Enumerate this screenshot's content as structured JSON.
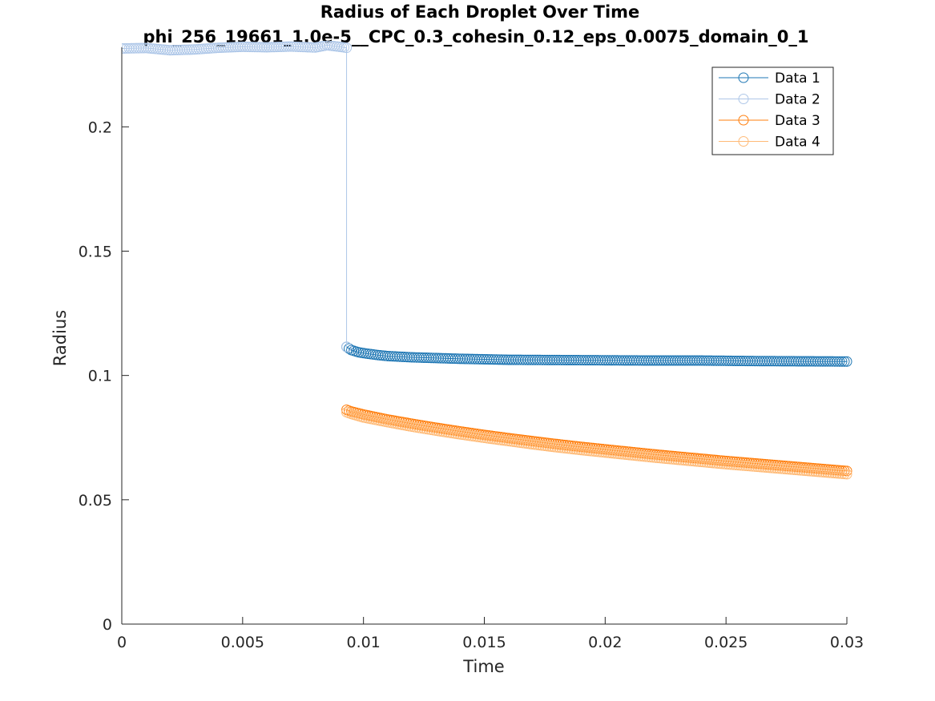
{
  "chart_data": {
    "type": "line",
    "title": "Radius of Each Droplet Over Time",
    "subtitle": "phi_256_19661_1.0e-5__CPC_0.3_cohesin_0.12_eps_0.0075_domain_0_1",
    "xlabel": "Time",
    "ylabel": "Radius",
    "xlim": [
      0,
      0.03
    ],
    "ylim": [
      0,
      0.232
    ],
    "xticks": [
      0,
      0.005,
      0.01,
      0.015,
      0.02,
      0.025,
      0.03
    ],
    "xtick_labels": [
      "0",
      "0.005",
      "0.01",
      "0.015",
      "0.02",
      "0.025",
      "0.03"
    ],
    "yticks": [
      0,
      0.05,
      0.1,
      0.15,
      0.2
    ],
    "ytick_labels": [
      "0",
      "0.05",
      "0.1",
      "0.15",
      "0.2"
    ],
    "grid": false,
    "legend_position": "top-right",
    "marker": "circle-open",
    "series": [
      {
        "name": "Data 1",
        "color": "#1f77b4",
        "x": [
          0.0093,
          0.0095,
          0.0098,
          0.0102,
          0.0106,
          0.011,
          0.012,
          0.013,
          0.014,
          0.016,
          0.018,
          0.02,
          0.022,
          0.024,
          0.026,
          0.028,
          0.03
        ],
        "y": [
          0.1115,
          0.1102,
          0.1093,
          0.1087,
          0.1082,
          0.1078,
          0.1073,
          0.107,
          0.1067,
          0.1063,
          0.1062,
          0.1061,
          0.106,
          0.106,
          0.1058,
          0.1057,
          0.1056
        ]
      },
      {
        "name": "Data 2",
        "color": "#aec7e8",
        "x": [
          0,
          0.001,
          0.002,
          0.003,
          0.004,
          0.005,
          0.006,
          0.007,
          0.008,
          0.0085,
          0.009,
          0.0093,
          0.0093
        ],
        "y": [
          0.2315,
          0.2317,
          0.2308,
          0.2311,
          0.2318,
          0.2322,
          0.232,
          0.2323,
          0.2319,
          0.2328,
          0.2322,
          0.2318,
          0.1115
        ]
      },
      {
        "name": "Data 3",
        "color": "#ff7f0e",
        "x": [
          0.0093,
          0.0095,
          0.01,
          0.011,
          0.012,
          0.013,
          0.014,
          0.015,
          0.016,
          0.017,
          0.018,
          0.019,
          0.02,
          0.021,
          0.022,
          0.023,
          0.024,
          0.025,
          0.026,
          0.027,
          0.028,
          0.029,
          0.03
        ],
        "y": [
          0.0862,
          0.0855,
          0.0843,
          0.0823,
          0.0806,
          0.079,
          0.0775,
          0.0761,
          0.0748,
          0.0736,
          0.0724,
          0.0713,
          0.0703,
          0.0693,
          0.0683,
          0.0674,
          0.0665,
          0.0656,
          0.0648,
          0.064,
          0.0632,
          0.0624,
          0.0616
        ]
      },
      {
        "name": "Data 4",
        "color": "#ffbb78",
        "x": [
          0.0093,
          0.0095,
          0.01,
          0.011,
          0.012,
          0.013,
          0.014,
          0.015,
          0.016,
          0.017,
          0.018,
          0.019,
          0.02,
          0.021,
          0.022,
          0.023,
          0.024,
          0.025,
          0.026,
          0.027,
          0.028,
          0.029,
          0.03
        ],
        "y": [
          0.0852,
          0.0845,
          0.0831,
          0.0812,
          0.0794,
          0.0778,
          0.0763,
          0.0749,
          0.0736,
          0.0723,
          0.0711,
          0.07,
          0.069,
          0.068,
          0.067,
          0.0661,
          0.0652,
          0.0643,
          0.0635,
          0.0627,
          0.0619,
          0.0611,
          0.0603
        ]
      }
    ]
  }
}
